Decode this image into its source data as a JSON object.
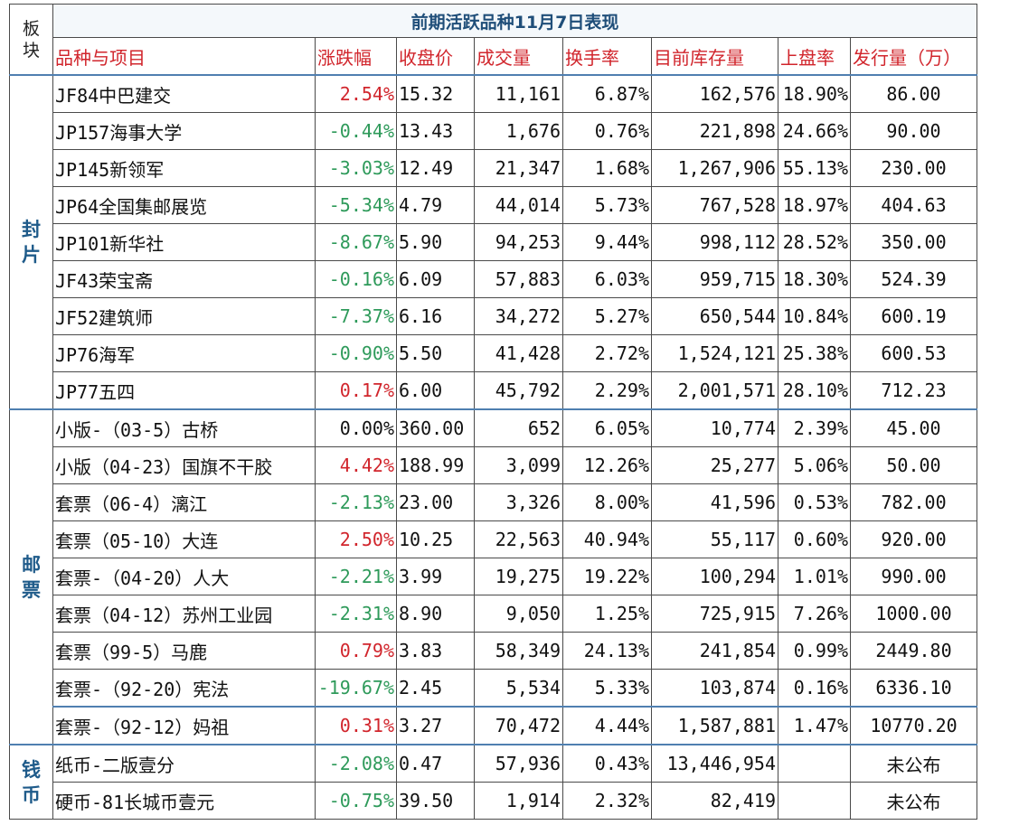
{
  "title": "前期活跃品种11月7日表现",
  "headers": {
    "category": "板块",
    "name": "品种与项目",
    "change": "涨跌幅",
    "close": "收盘价",
    "volume": "成交量",
    "turnover": "换手率",
    "stock": "目前库存量",
    "listing_rate": "上盘率",
    "issue": "发行量（万）"
  },
  "colors": {
    "up": "#d1252c",
    "down": "#2e9a5a",
    "flat": "#111111",
    "accent": "#1f5b8a"
  },
  "groups": [
    {
      "category": "封片",
      "rows": [
        {
          "name": "JF84中巴建交",
          "change": "2.54%",
          "dir": "up",
          "close": "15.32",
          "volume": "11,161",
          "turnover": "6.87%",
          "stock": "162,576",
          "listing_rate": "18.90%",
          "issue": "86.00"
        },
        {
          "name": "JP157海事大学",
          "change": "-0.44%",
          "dir": "down",
          "close": "13.43",
          "volume": "1,676",
          "turnover": "0.76%",
          "stock": "221,898",
          "listing_rate": "24.66%",
          "issue": "90.00"
        },
        {
          "name": "JP145新领军",
          "change": "-3.03%",
          "dir": "down",
          "close": "12.49",
          "volume": "21,347",
          "turnover": "1.68%",
          "stock": "1,267,906",
          "listing_rate": "55.13%",
          "issue": "230.00"
        },
        {
          "name": "JP64全国集邮展览",
          "change": "-5.34%",
          "dir": "down",
          "close": "4.79",
          "volume": "44,014",
          "turnover": "5.73%",
          "stock": "767,528",
          "listing_rate": "18.97%",
          "issue": "404.63"
        },
        {
          "name": "JP101新华社",
          "change": "-8.67%",
          "dir": "down",
          "close": "5.90",
          "volume": "94,253",
          "turnover": "9.44%",
          "stock": "998,112",
          "listing_rate": "28.52%",
          "issue": "350.00"
        },
        {
          "name": "JF43荣宝斋",
          "change": "-0.16%",
          "dir": "down",
          "close": "6.09",
          "volume": "57,883",
          "turnover": "6.03%",
          "stock": "959,715",
          "listing_rate": "18.30%",
          "issue": "524.39"
        },
        {
          "name": "JF52建筑师",
          "change": "-7.37%",
          "dir": "down",
          "close": "6.16",
          "volume": "34,272",
          "turnover": "5.27%",
          "stock": "650,544",
          "listing_rate": "10.84%",
          "issue": "600.19"
        },
        {
          "name": "JP76海军",
          "change": "-0.90%",
          "dir": "down",
          "close": "5.50",
          "volume": "41,428",
          "turnover": "2.72%",
          "stock": "1,524,121",
          "listing_rate": "25.38%",
          "issue": "600.53"
        },
        {
          "name": "JP77五四",
          "change": "0.17%",
          "dir": "up",
          "close": "6.00",
          "volume": "45,792",
          "turnover": "2.29%",
          "stock": "2,001,571",
          "listing_rate": "28.10%",
          "issue": "712.23"
        }
      ]
    },
    {
      "category": "邮票",
      "rows": [
        {
          "name": "小版-（03-5）古桥",
          "change": "0.00%",
          "dir": "flat",
          "close": "360.00",
          "volume": "652",
          "turnover": "6.05%",
          "stock": "10,774",
          "listing_rate": "2.39%",
          "issue": "45.00"
        },
        {
          "name": "小版（04-23）国旗不干胶",
          "change": "4.42%",
          "dir": "up",
          "close": "188.99",
          "volume": "3,099",
          "turnover": "12.26%",
          "stock": "25,277",
          "listing_rate": "5.06%",
          "issue": "50.00"
        },
        {
          "name": "套票（06-4）漓江",
          "change": "-2.13%",
          "dir": "down",
          "close": "23.00",
          "volume": "3,326",
          "turnover": "8.00%",
          "stock": "41,596",
          "listing_rate": "0.53%",
          "issue": "782.00"
        },
        {
          "name": "套票（05-10）大连",
          "change": "2.50%",
          "dir": "up",
          "close": "10.25",
          "volume": "22,563",
          "turnover": "40.94%",
          "stock": "55,117",
          "listing_rate": "0.60%",
          "issue": "920.00"
        },
        {
          "name": "套票-（04-20）人大",
          "change": "-2.21%",
          "dir": "down",
          "close": "3.99",
          "volume": "19,275",
          "turnover": "19.22%",
          "stock": "100,294",
          "listing_rate": "1.01%",
          "issue": "990.00"
        },
        {
          "name": "套票（04-12）苏州工业园",
          "change": "-2.31%",
          "dir": "down",
          "close": "8.90",
          "volume": "9,050",
          "turnover": "1.25%",
          "stock": "725,915",
          "listing_rate": "7.26%",
          "issue": "1000.00"
        },
        {
          "name": "套票（99-5）马鹿",
          "change": "0.79%",
          "dir": "up",
          "close": "3.83",
          "volume": "58,349",
          "turnover": "24.13%",
          "stock": "241,854",
          "listing_rate": "0.99%",
          "issue": "2449.80"
        },
        {
          "name": "套票-（92-20）宪法",
          "change": "-19.67%",
          "dir": "down",
          "close": "2.45",
          "volume": "5,534",
          "turnover": "5.33%",
          "stock": "103,874",
          "listing_rate": "0.16%",
          "issue": "6336.10"
        },
        {
          "name": "套票-（92-12）妈祖",
          "change": "0.31%",
          "dir": "up",
          "close": "3.27",
          "volume": "70,472",
          "turnover": "4.44%",
          "stock": "1,587,881",
          "listing_rate": "1.47%",
          "issue": "10770.20"
        }
      ]
    },
    {
      "category": "钱币",
      "rows": [
        {
          "name": "纸币-二版壹分",
          "change": "-2.08%",
          "dir": "down",
          "close": "0.47",
          "volume": "57,936",
          "turnover": "0.43%",
          "stock": "13,446,954",
          "listing_rate": "",
          "issue": "未公布"
        },
        {
          "name": "硬币-81长城币壹元",
          "change": "-0.75%",
          "dir": "down",
          "close": "39.50",
          "volume": "1,914",
          "turnover": "2.32%",
          "stock": "82,419",
          "listing_rate": "",
          "issue": "未公布"
        }
      ]
    }
  ]
}
